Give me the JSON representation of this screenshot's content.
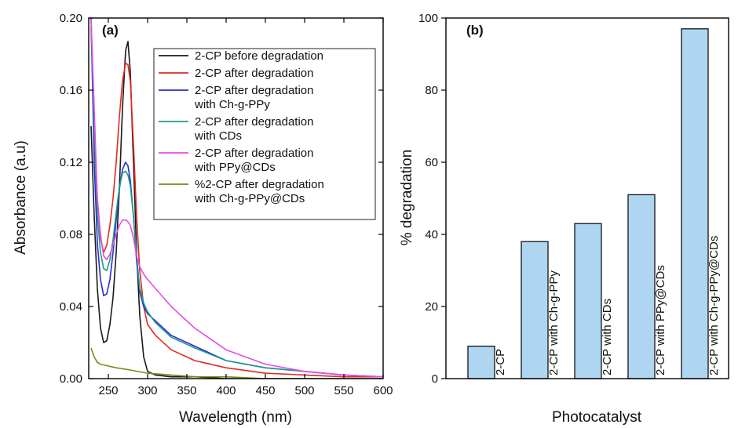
{
  "chart_data": [
    {
      "panel": "(a)",
      "type": "line",
      "xlabel": "Wavelength (nm)",
      "ylabel": "Absorbance (a.u)",
      "xlim": [
        225,
        600
      ],
      "ylim": [
        0,
        0.2
      ],
      "xticks": [
        250,
        300,
        350,
        400,
        450,
        500,
        550,
        600
      ],
      "yticks": [
        0.0,
        0.04,
        0.08,
        0.12,
        0.16,
        0.2
      ],
      "ytick_labels": [
        "0.00",
        "0.04",
        "0.08",
        "0.12",
        "0.16",
        "0.20"
      ],
      "legend_position": "top-right",
      "series": [
        {
          "name": "2-CP before degradation",
          "color": "#1a1a1a",
          "x": [
            228,
            232,
            236,
            240,
            244,
            248,
            252,
            256,
            260,
            264,
            268,
            272,
            275,
            278,
            282,
            286,
            290,
            295,
            300,
            310,
            330,
            360,
            400,
            450,
            500,
            550,
            600
          ],
          "y": [
            0.14,
            0.09,
            0.05,
            0.028,
            0.02,
            0.021,
            0.03,
            0.045,
            0.07,
            0.105,
            0.15,
            0.182,
            0.187,
            0.17,
            0.12,
            0.07,
            0.035,
            0.012,
            0.004,
            0.002,
            0.001,
            0.001,
            0.0,
            0.0,
            0.0,
            0.0,
            0.0
          ]
        },
        {
          "name": "2-CP after degradation",
          "color": "#e02b20",
          "x": [
            228,
            232,
            236,
            240,
            244,
            248,
            252,
            256,
            260,
            264,
            268,
            272,
            275,
            278,
            282,
            286,
            290,
            295,
            300,
            310,
            330,
            360,
            400,
            450,
            500,
            550,
            600
          ],
          "y": [
            0.195,
            0.14,
            0.1,
            0.078,
            0.07,
            0.074,
            0.085,
            0.1,
            0.12,
            0.145,
            0.165,
            0.175,
            0.174,
            0.165,
            0.13,
            0.09,
            0.06,
            0.04,
            0.03,
            0.024,
            0.016,
            0.01,
            0.006,
            0.003,
            0.002,
            0.001,
            0.001
          ]
        },
        {
          "name": "2-CP after degradation with Ch-g-PPy",
          "color": "#2b2bd6",
          "x": [
            228,
            232,
            236,
            240,
            244,
            248,
            252,
            256,
            260,
            264,
            268,
            272,
            275,
            278,
            282,
            286,
            290,
            295,
            300,
            310,
            330,
            360,
            400,
            450,
            500,
            550,
            600
          ],
          "y": [
            0.2,
            0.12,
            0.075,
            0.055,
            0.046,
            0.047,
            0.055,
            0.07,
            0.088,
            0.105,
            0.116,
            0.12,
            0.118,
            0.11,
            0.09,
            0.065,
            0.048,
            0.04,
            0.036,
            0.032,
            0.024,
            0.018,
            0.01,
            0.006,
            0.004,
            0.002,
            0.001
          ]
        },
        {
          "name": "2-CP after degradation with CDs",
          "color": "#1f9a8a",
          "x": [
            228,
            232,
            236,
            240,
            244,
            248,
            252,
            256,
            260,
            264,
            268,
            272,
            275,
            278,
            282,
            286,
            290,
            295,
            300,
            310,
            330,
            360,
            400,
            450,
            500,
            550,
            600
          ],
          "y": [
            0.2,
            0.14,
            0.09,
            0.07,
            0.061,
            0.06,
            0.066,
            0.077,
            0.092,
            0.106,
            0.114,
            0.115,
            0.113,
            0.107,
            0.09,
            0.068,
            0.05,
            0.042,
            0.037,
            0.031,
            0.023,
            0.017,
            0.01,
            0.006,
            0.004,
            0.002,
            0.001
          ]
        },
        {
          "name": "2-CP after degradation with PPy@CDs",
          "color": "#e64ce6",
          "x": [
            228,
            232,
            236,
            240,
            244,
            248,
            252,
            256,
            260,
            264,
            268,
            272,
            275,
            278,
            282,
            286,
            290,
            295,
            300,
            310,
            330,
            360,
            400,
            450,
            500,
            550,
            600
          ],
          "y": [
            0.2,
            0.15,
            0.1,
            0.08,
            0.068,
            0.066,
            0.069,
            0.074,
            0.08,
            0.085,
            0.088,
            0.088,
            0.087,
            0.085,
            0.078,
            0.068,
            0.062,
            0.058,
            0.055,
            0.05,
            0.04,
            0.028,
            0.016,
            0.008,
            0.004,
            0.002,
            0.001
          ]
        },
        {
          "name": "%2-CP after degradation with Ch-g-PPy@CDs",
          "color": "#7a8a1a",
          "x": [
            228,
            232,
            236,
            240,
            250,
            260,
            275,
            300,
            330,
            360,
            400,
            450,
            500,
            550,
            600
          ],
          "y": [
            0.017,
            0.012,
            0.009,
            0.008,
            0.007,
            0.006,
            0.005,
            0.003,
            0.002,
            0.001,
            0.001,
            0.0,
            0.0,
            0.0,
            0.0
          ]
        }
      ]
    },
    {
      "panel": "(b)",
      "type": "bar",
      "xlabel": "Photocatalyst",
      "ylabel": "% degradation",
      "ylim": [
        0,
        100
      ],
      "yticks": [
        0,
        20,
        40,
        60,
        80,
        100
      ],
      "categories": [
        "2-CP",
        "2-CP with Ch-g-PPy",
        "2-CP with CDs",
        "2-CP with PPy@CDs",
        "2-CP with Ch-g-PPy@CDs"
      ],
      "values": [
        9,
        38,
        43,
        51,
        97
      ]
    }
  ]
}
